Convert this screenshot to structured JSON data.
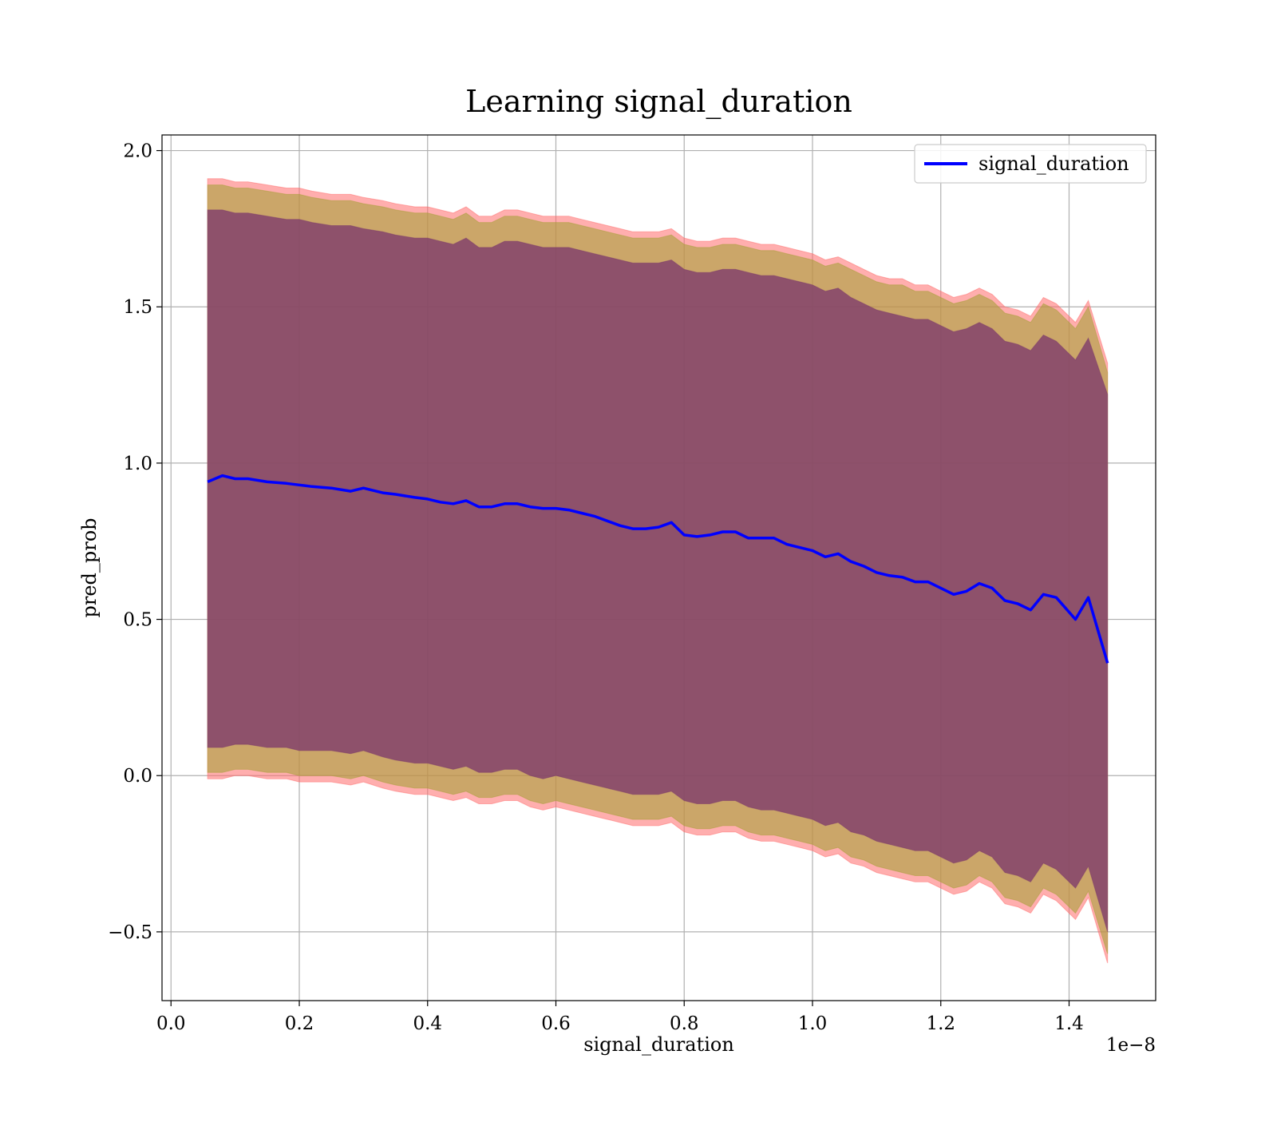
{
  "chart_data": {
    "type": "line",
    "title": "Learning signal_duration",
    "xlabel": "signal_duration",
    "ylabel": "pred_prob",
    "x_offset_label": "1e−8",
    "xlim": [
      -0.014,
      1.535
    ],
    "ylim": [
      -0.72,
      2.05
    ],
    "xticks": [
      0.0,
      0.2,
      0.4,
      0.6,
      0.8,
      1.0,
      1.2,
      1.4
    ],
    "xtick_labels": [
      "0.0",
      "0.2",
      "0.4",
      "0.6",
      "0.8",
      "1.0",
      "1.2",
      "1.4"
    ],
    "yticks": [
      -0.5,
      0.0,
      0.5,
      1.0,
      1.5,
      2.0
    ],
    "ytick_labels": [
      "−0.5",
      "0.0",
      "0.5",
      "1.0",
      "1.5",
      "2.0"
    ],
    "grid": true,
    "legend": {
      "location": "upper right",
      "entries": [
        "signal_duration"
      ]
    },
    "colors": {
      "line": "#0000ff",
      "outer_band": "#ff6b6b",
      "middle_band": "#a9a03a",
      "inner_band": "#7c3a6c"
    },
    "series": [
      {
        "name": "signal_duration",
        "x": [
          0.057,
          0.08,
          0.1,
          0.12,
          0.15,
          0.18,
          0.2,
          0.22,
          0.25,
          0.28,
          0.3,
          0.33,
          0.35,
          0.38,
          0.4,
          0.42,
          0.44,
          0.46,
          0.48,
          0.5,
          0.52,
          0.54,
          0.56,
          0.58,
          0.6,
          0.62,
          0.64,
          0.66,
          0.68,
          0.7,
          0.72,
          0.74,
          0.76,
          0.78,
          0.8,
          0.82,
          0.84,
          0.86,
          0.88,
          0.9,
          0.92,
          0.94,
          0.96,
          0.98,
          1.0,
          1.02,
          1.04,
          1.06,
          1.08,
          1.1,
          1.12,
          1.14,
          1.16,
          1.18,
          1.2,
          1.22,
          1.24,
          1.26,
          1.28,
          1.3,
          1.32,
          1.34,
          1.36,
          1.38,
          1.41,
          1.43,
          1.46
        ],
        "values": [
          0.94,
          0.96,
          0.95,
          0.95,
          0.94,
          0.935,
          0.93,
          0.925,
          0.92,
          0.91,
          0.92,
          0.905,
          0.9,
          0.89,
          0.885,
          0.875,
          0.87,
          0.88,
          0.86,
          0.86,
          0.87,
          0.87,
          0.86,
          0.855,
          0.855,
          0.85,
          0.84,
          0.83,
          0.815,
          0.8,
          0.79,
          0.79,
          0.795,
          0.81,
          0.77,
          0.765,
          0.77,
          0.78,
          0.78,
          0.76,
          0.76,
          0.76,
          0.74,
          0.73,
          0.72,
          0.7,
          0.71,
          0.685,
          0.67,
          0.65,
          0.64,
          0.635,
          0.62,
          0.62,
          0.6,
          0.58,
          0.59,
          0.615,
          0.6,
          0.56,
          0.55,
          0.53,
          0.58,
          0.57,
          0.5,
          0.57,
          0.36
        ]
      }
    ],
    "bands": [
      {
        "role": "outer",
        "upper": [
          1.91,
          1.91,
          1.9,
          1.9,
          1.89,
          1.88,
          1.88,
          1.87,
          1.86,
          1.86,
          1.85,
          1.84,
          1.83,
          1.82,
          1.82,
          1.81,
          1.8,
          1.82,
          1.79,
          1.79,
          1.81,
          1.81,
          1.8,
          1.79,
          1.79,
          1.79,
          1.78,
          1.77,
          1.76,
          1.75,
          1.74,
          1.74,
          1.74,
          1.75,
          1.72,
          1.71,
          1.71,
          1.72,
          1.72,
          1.71,
          1.7,
          1.7,
          1.69,
          1.68,
          1.67,
          1.65,
          1.66,
          1.64,
          1.62,
          1.6,
          1.59,
          1.59,
          1.57,
          1.57,
          1.55,
          1.53,
          1.54,
          1.56,
          1.54,
          1.5,
          1.49,
          1.47,
          1.53,
          1.51,
          1.45,
          1.52,
          1.32
        ],
        "lower": [
          -0.01,
          -0.01,
          0.0,
          0.0,
          -0.01,
          -0.01,
          -0.02,
          -0.02,
          -0.02,
          -0.03,
          -0.02,
          -0.04,
          -0.05,
          -0.06,
          -0.06,
          -0.07,
          -0.08,
          -0.07,
          -0.09,
          -0.09,
          -0.08,
          -0.08,
          -0.1,
          -0.11,
          -0.1,
          -0.11,
          -0.12,
          -0.13,
          -0.14,
          -0.15,
          -0.16,
          -0.16,
          -0.16,
          -0.15,
          -0.18,
          -0.19,
          -0.19,
          -0.18,
          -0.18,
          -0.2,
          -0.21,
          -0.21,
          -0.22,
          -0.23,
          -0.24,
          -0.26,
          -0.25,
          -0.28,
          -0.29,
          -0.31,
          -0.32,
          -0.33,
          -0.34,
          -0.34,
          -0.36,
          -0.38,
          -0.37,
          -0.34,
          -0.36,
          -0.41,
          -0.42,
          -0.44,
          -0.38,
          -0.4,
          -0.46,
          -0.39,
          -0.6
        ]
      },
      {
        "role": "middle",
        "upper": [
          1.89,
          1.89,
          1.88,
          1.88,
          1.87,
          1.86,
          1.86,
          1.85,
          1.84,
          1.84,
          1.83,
          1.82,
          1.81,
          1.8,
          1.8,
          1.79,
          1.78,
          1.8,
          1.77,
          1.77,
          1.79,
          1.79,
          1.78,
          1.77,
          1.77,
          1.77,
          1.76,
          1.75,
          1.74,
          1.73,
          1.72,
          1.72,
          1.72,
          1.73,
          1.7,
          1.69,
          1.69,
          1.7,
          1.7,
          1.69,
          1.68,
          1.68,
          1.67,
          1.66,
          1.65,
          1.63,
          1.64,
          1.62,
          1.6,
          1.58,
          1.57,
          1.57,
          1.55,
          1.55,
          1.53,
          1.51,
          1.52,
          1.54,
          1.52,
          1.48,
          1.47,
          1.45,
          1.51,
          1.49,
          1.43,
          1.5,
          1.29
        ],
        "lower": [
          0.01,
          0.01,
          0.02,
          0.02,
          0.01,
          0.01,
          0.0,
          0.0,
          0.0,
          -0.01,
          0.0,
          -0.02,
          -0.03,
          -0.04,
          -0.04,
          -0.05,
          -0.06,
          -0.05,
          -0.07,
          -0.07,
          -0.06,
          -0.06,
          -0.08,
          -0.09,
          -0.08,
          -0.09,
          -0.1,
          -0.11,
          -0.12,
          -0.13,
          -0.14,
          -0.14,
          -0.14,
          -0.13,
          -0.16,
          -0.17,
          -0.17,
          -0.16,
          -0.16,
          -0.18,
          -0.19,
          -0.19,
          -0.2,
          -0.21,
          -0.22,
          -0.24,
          -0.23,
          -0.26,
          -0.27,
          -0.29,
          -0.3,
          -0.31,
          -0.32,
          -0.32,
          -0.34,
          -0.36,
          -0.35,
          -0.32,
          -0.34,
          -0.39,
          -0.4,
          -0.42,
          -0.36,
          -0.38,
          -0.44,
          -0.37,
          -0.57
        ]
      },
      {
        "role": "inner",
        "upper": [
          1.81,
          1.81,
          1.8,
          1.8,
          1.79,
          1.78,
          1.78,
          1.77,
          1.76,
          1.76,
          1.75,
          1.74,
          1.73,
          1.72,
          1.72,
          1.71,
          1.7,
          1.72,
          1.69,
          1.69,
          1.71,
          1.71,
          1.7,
          1.69,
          1.69,
          1.69,
          1.68,
          1.67,
          1.66,
          1.65,
          1.64,
          1.64,
          1.64,
          1.65,
          1.62,
          1.61,
          1.61,
          1.62,
          1.62,
          1.61,
          1.6,
          1.6,
          1.59,
          1.58,
          1.57,
          1.55,
          1.56,
          1.53,
          1.51,
          1.49,
          1.48,
          1.47,
          1.46,
          1.46,
          1.44,
          1.42,
          1.43,
          1.45,
          1.43,
          1.39,
          1.38,
          1.36,
          1.41,
          1.39,
          1.33,
          1.4,
          1.22
        ],
        "lower": [
          0.09,
          0.09,
          0.1,
          0.1,
          0.09,
          0.09,
          0.08,
          0.08,
          0.08,
          0.07,
          0.08,
          0.06,
          0.05,
          0.04,
          0.04,
          0.03,
          0.02,
          0.03,
          0.01,
          0.01,
          0.02,
          0.02,
          0.0,
          -0.01,
          0.0,
          -0.01,
          -0.02,
          -0.03,
          -0.04,
          -0.05,
          -0.06,
          -0.06,
          -0.06,
          -0.05,
          -0.08,
          -0.09,
          -0.09,
          -0.08,
          -0.08,
          -0.1,
          -0.11,
          -0.11,
          -0.12,
          -0.13,
          -0.14,
          -0.16,
          -0.15,
          -0.18,
          -0.19,
          -0.21,
          -0.22,
          -0.23,
          -0.24,
          -0.24,
          -0.26,
          -0.28,
          -0.27,
          -0.24,
          -0.26,
          -0.31,
          -0.32,
          -0.34,
          -0.28,
          -0.3,
          -0.36,
          -0.29,
          -0.5
        ]
      }
    ]
  }
}
